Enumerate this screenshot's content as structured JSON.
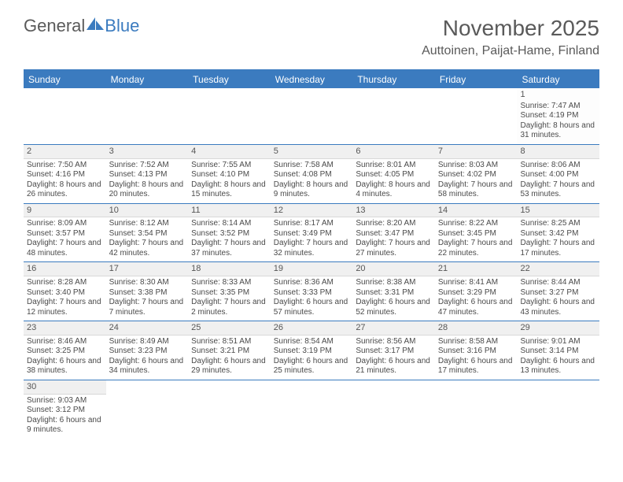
{
  "logo": {
    "text1": "General",
    "text2": "Blue"
  },
  "title": "November 2025",
  "location": "Auttoinen, Paijat-Hame, Finland",
  "colors": {
    "header_bg": "#3b7bbf",
    "header_text": "#ffffff",
    "rule": "#3b7bbf",
    "shaded_bg": "#f0f0f0",
    "body_text": "#4a4a4a"
  },
  "weekdays": [
    "Sunday",
    "Monday",
    "Tuesday",
    "Wednesday",
    "Thursday",
    "Friday",
    "Saturday"
  ],
  "weeks": [
    [
      {
        "empty": true
      },
      {
        "empty": true
      },
      {
        "empty": true
      },
      {
        "empty": true
      },
      {
        "empty": true
      },
      {
        "empty": true
      },
      {
        "num": "1",
        "sunrise": "Sunrise: 7:47 AM",
        "sunset": "Sunset: 4:19 PM",
        "daylight": "Daylight: 8 hours and 31 minutes."
      }
    ],
    [
      {
        "num": "2",
        "sunrise": "Sunrise: 7:50 AM",
        "sunset": "Sunset: 4:16 PM",
        "daylight": "Daylight: 8 hours and 26 minutes."
      },
      {
        "num": "3",
        "sunrise": "Sunrise: 7:52 AM",
        "sunset": "Sunset: 4:13 PM",
        "daylight": "Daylight: 8 hours and 20 minutes."
      },
      {
        "num": "4",
        "sunrise": "Sunrise: 7:55 AM",
        "sunset": "Sunset: 4:10 PM",
        "daylight": "Daylight: 8 hours and 15 minutes."
      },
      {
        "num": "5",
        "sunrise": "Sunrise: 7:58 AM",
        "sunset": "Sunset: 4:08 PM",
        "daylight": "Daylight: 8 hours and 9 minutes."
      },
      {
        "num": "6",
        "sunrise": "Sunrise: 8:01 AM",
        "sunset": "Sunset: 4:05 PM",
        "daylight": "Daylight: 8 hours and 4 minutes."
      },
      {
        "num": "7",
        "sunrise": "Sunrise: 8:03 AM",
        "sunset": "Sunset: 4:02 PM",
        "daylight": "Daylight: 7 hours and 58 minutes."
      },
      {
        "num": "8",
        "sunrise": "Sunrise: 8:06 AM",
        "sunset": "Sunset: 4:00 PM",
        "daylight": "Daylight: 7 hours and 53 minutes."
      }
    ],
    [
      {
        "num": "9",
        "sunrise": "Sunrise: 8:09 AM",
        "sunset": "Sunset: 3:57 PM",
        "daylight": "Daylight: 7 hours and 48 minutes."
      },
      {
        "num": "10",
        "sunrise": "Sunrise: 8:12 AM",
        "sunset": "Sunset: 3:54 PM",
        "daylight": "Daylight: 7 hours and 42 minutes."
      },
      {
        "num": "11",
        "sunrise": "Sunrise: 8:14 AM",
        "sunset": "Sunset: 3:52 PM",
        "daylight": "Daylight: 7 hours and 37 minutes."
      },
      {
        "num": "12",
        "sunrise": "Sunrise: 8:17 AM",
        "sunset": "Sunset: 3:49 PM",
        "daylight": "Daylight: 7 hours and 32 minutes."
      },
      {
        "num": "13",
        "sunrise": "Sunrise: 8:20 AM",
        "sunset": "Sunset: 3:47 PM",
        "daylight": "Daylight: 7 hours and 27 minutes."
      },
      {
        "num": "14",
        "sunrise": "Sunrise: 8:22 AM",
        "sunset": "Sunset: 3:45 PM",
        "daylight": "Daylight: 7 hours and 22 minutes."
      },
      {
        "num": "15",
        "sunrise": "Sunrise: 8:25 AM",
        "sunset": "Sunset: 3:42 PM",
        "daylight": "Daylight: 7 hours and 17 minutes."
      }
    ],
    [
      {
        "num": "16",
        "sunrise": "Sunrise: 8:28 AM",
        "sunset": "Sunset: 3:40 PM",
        "daylight": "Daylight: 7 hours and 12 minutes."
      },
      {
        "num": "17",
        "sunrise": "Sunrise: 8:30 AM",
        "sunset": "Sunset: 3:38 PM",
        "daylight": "Daylight: 7 hours and 7 minutes."
      },
      {
        "num": "18",
        "sunrise": "Sunrise: 8:33 AM",
        "sunset": "Sunset: 3:35 PM",
        "daylight": "Daylight: 7 hours and 2 minutes."
      },
      {
        "num": "19",
        "sunrise": "Sunrise: 8:36 AM",
        "sunset": "Sunset: 3:33 PM",
        "daylight": "Daylight: 6 hours and 57 minutes."
      },
      {
        "num": "20",
        "sunrise": "Sunrise: 8:38 AM",
        "sunset": "Sunset: 3:31 PM",
        "daylight": "Daylight: 6 hours and 52 minutes."
      },
      {
        "num": "21",
        "sunrise": "Sunrise: 8:41 AM",
        "sunset": "Sunset: 3:29 PM",
        "daylight": "Daylight: 6 hours and 47 minutes."
      },
      {
        "num": "22",
        "sunrise": "Sunrise: 8:44 AM",
        "sunset": "Sunset: 3:27 PM",
        "daylight": "Daylight: 6 hours and 43 minutes."
      }
    ],
    [
      {
        "num": "23",
        "sunrise": "Sunrise: 8:46 AM",
        "sunset": "Sunset: 3:25 PM",
        "daylight": "Daylight: 6 hours and 38 minutes."
      },
      {
        "num": "24",
        "sunrise": "Sunrise: 8:49 AM",
        "sunset": "Sunset: 3:23 PM",
        "daylight": "Daylight: 6 hours and 34 minutes."
      },
      {
        "num": "25",
        "sunrise": "Sunrise: 8:51 AM",
        "sunset": "Sunset: 3:21 PM",
        "daylight": "Daylight: 6 hours and 29 minutes."
      },
      {
        "num": "26",
        "sunrise": "Sunrise: 8:54 AM",
        "sunset": "Sunset: 3:19 PM",
        "daylight": "Daylight: 6 hours and 25 minutes."
      },
      {
        "num": "27",
        "sunrise": "Sunrise: 8:56 AM",
        "sunset": "Sunset: 3:17 PM",
        "daylight": "Daylight: 6 hours and 21 minutes."
      },
      {
        "num": "28",
        "sunrise": "Sunrise: 8:58 AM",
        "sunset": "Sunset: 3:16 PM",
        "daylight": "Daylight: 6 hours and 17 minutes."
      },
      {
        "num": "29",
        "sunrise": "Sunrise: 9:01 AM",
        "sunset": "Sunset: 3:14 PM",
        "daylight": "Daylight: 6 hours and 13 minutes."
      }
    ],
    [
      {
        "num": "30",
        "sunrise": "Sunrise: 9:03 AM",
        "sunset": "Sunset: 3:12 PM",
        "daylight": "Daylight: 6 hours and 9 minutes."
      },
      {
        "empty": true
      },
      {
        "empty": true
      },
      {
        "empty": true
      },
      {
        "empty": true
      },
      {
        "empty": true
      },
      {
        "empty": true
      }
    ]
  ]
}
